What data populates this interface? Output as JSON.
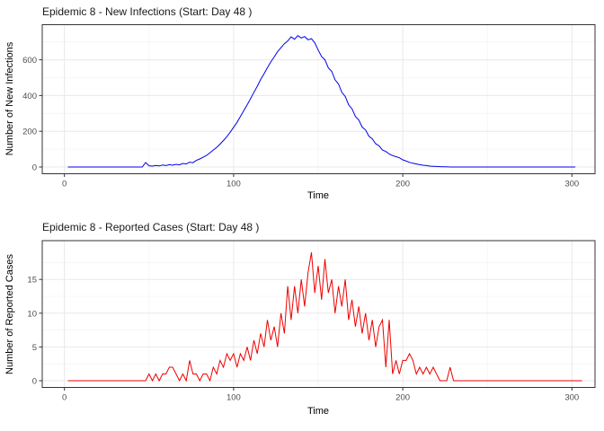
{
  "style": {
    "background": "#ffffff",
    "panel_background": "#ffffff",
    "panel_border": "#333333",
    "grid_major": "#e8e8e8",
    "grid_minor": "#f4f4f4",
    "tick_mark": "#333333",
    "tick_label_color": "#4d4d4d",
    "title_color": "#1a1a1a"
  },
  "chart_data": [
    {
      "type": "line",
      "title": "Epidemic 8 - New Infections (Start: Day 48 )",
      "xlabel": "Time",
      "ylabel": "Number of New Infections",
      "line_color": "#0000EE",
      "legend": "none",
      "grid": "on",
      "xlim": [
        0,
        302
      ],
      "ylim": [
        0,
        735
      ],
      "x_ticks": [
        0,
        100,
        200,
        300
      ],
      "x_minor": [
        50,
        150,
        250
      ],
      "y_ticks": [
        0,
        200,
        400,
        600
      ],
      "y_minor": [
        100,
        300,
        500,
        700
      ],
      "x_start": 2,
      "x_step": 2,
      "values": [
        0,
        0,
        0,
        0,
        0,
        0,
        0,
        0,
        0,
        0,
        0,
        0,
        0,
        0,
        0,
        0,
        0,
        0,
        0,
        0,
        0,
        0,
        0,
        25,
        7,
        5,
        9,
        6,
        11,
        8,
        13,
        10,
        15,
        12,
        20,
        17,
        27,
        24,
        37,
        45,
        55,
        65,
        80,
        95,
        110,
        128,
        148,
        170,
        195,
        222,
        250,
        282,
        315,
        348,
        382,
        418,
        452,
        490,
        522,
        556,
        588,
        616,
        645,
        668,
        690,
        705,
        728,
        715,
        735,
        722,
        730,
        712,
        718,
        695,
        655,
        618,
        600,
        555,
        535,
        488,
        465,
        418,
        395,
        348,
        326,
        283,
        263,
        224,
        207,
        172,
        158,
        130,
        118,
        95,
        87,
        73,
        64,
        58,
        52,
        40,
        33,
        26,
        21,
        17,
        13,
        10,
        8,
        5,
        4,
        3,
        2,
        1,
        1,
        0,
        0,
        0,
        0,
        0,
        0,
        0,
        0,
        0,
        0,
        0,
        0,
        0,
        0,
        0,
        0,
        0,
        0,
        0,
        0,
        0,
        0,
        0,
        0,
        0,
        0,
        0,
        0,
        0,
        0,
        0,
        0,
        0,
        0,
        0,
        0,
        0,
        0
      ]
    },
    {
      "type": "line",
      "title": "Epidemic 8 - Reported Cases (Start: Day 48 )",
      "xlabel": "Time",
      "ylabel": "Number of Reported Cases",
      "line_color": "#EE0000",
      "legend": "none",
      "grid": "on",
      "xlim": [
        0,
        306
      ],
      "ylim": [
        0,
        19
      ],
      "x_ticks": [
        0,
        100,
        200,
        300
      ],
      "x_minor": [
        50,
        150,
        250
      ],
      "y_ticks": [
        0,
        5,
        10,
        15
      ],
      "y_minor": [
        2.5,
        7.5,
        12.5,
        17.5
      ],
      "x_start": 2,
      "x_step": 2,
      "values": [
        0,
        0,
        0,
        0,
        0,
        0,
        0,
        0,
        0,
        0,
        0,
        0,
        0,
        0,
        0,
        0,
        0,
        0,
        0,
        0,
        0,
        0,
        0,
        0,
        1,
        0,
        1,
        0,
        1,
        1,
        2,
        2,
        1,
        0,
        1,
        0,
        3,
        1,
        1,
        0,
        1,
        1,
        0,
        2,
        1,
        3,
        2,
        4,
        3,
        4,
        2,
        4,
        3,
        5,
        3,
        6,
        4,
        7,
        5,
        9,
        6,
        8,
        5,
        10,
        7,
        14,
        9,
        14,
        10,
        15,
        11,
        16,
        19,
        13,
        17,
        12,
        18,
        13,
        15,
        10,
        14,
        11,
        15,
        9,
        12,
        8,
        11,
        7,
        10,
        6,
        9,
        5,
        8,
        9,
        2,
        9,
        1,
        3,
        1,
        3,
        3,
        4,
        3,
        1,
        2,
        1,
        2,
        1,
        2,
        1,
        0,
        0,
        0,
        2,
        0,
        0,
        0,
        0,
        0,
        0,
        0,
        0,
        0,
        0,
        0,
        0,
        0,
        0,
        0,
        0,
        0,
        0,
        0,
        0,
        0,
        0,
        0,
        0,
        0,
        0,
        0,
        0,
        0,
        0,
        0,
        0,
        0,
        0,
        0,
        0,
        0,
        0,
        0
      ]
    }
  ]
}
